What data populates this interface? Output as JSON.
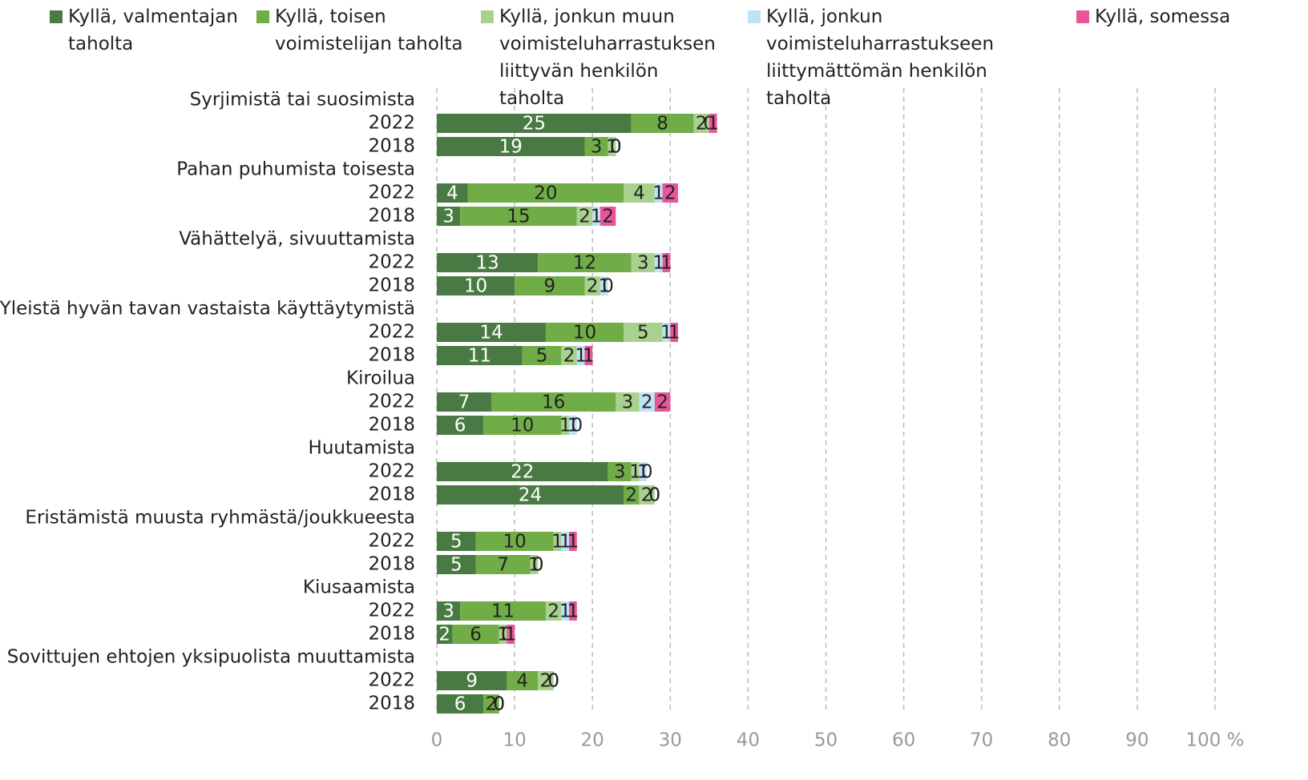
{
  "chart_data": {
    "type": "stacked-bar-horizontal",
    "groups": [
      "Syrjimistä tai suosimista",
      "Pahan puhumista toisesta",
      "Vähättelyä, sivuuttamista",
      "Yleistä hyvän tavan vastaista käyttäytymistä",
      "Kiroilua",
      "Huutamista",
      "Eristämistä muusta ryhmästä/joukkueesta",
      "Kiusaamista",
      "Sovittujen ehtojen yksipuolista muuttamista"
    ],
    "categories": [
      "2022",
      "2018",
      "2022",
      "2018",
      "2022",
      "2018",
      "2022",
      "2018",
      "2022",
      "2018",
      "2022",
      "2018",
      "2022",
      "2018",
      "2022",
      "2018",
      "2022",
      "2018"
    ],
    "series": [
      {
        "name": "Kyllä, valmentajan taholta",
        "color": "#4a7a43",
        "values": [
          25,
          19,
          4,
          3,
          13,
          10,
          14,
          11,
          7,
          6,
          22,
          24,
          5,
          5,
          3,
          2,
          9,
          6
        ]
      },
      {
        "name": "Kyllä, toisen voimistelijan taholta",
        "color": "#70ad47",
        "values": [
          8,
          3,
          20,
          15,
          12,
          9,
          10,
          5,
          16,
          10,
          3,
          2,
          10,
          7,
          11,
          6,
          4,
          2
        ]
      },
      {
        "name": "Kyllä, jonkun muun voimisteluharrastuksen liittyvän henkilön taholta",
        "color": "#a9d18e",
        "values": [
          2,
          1,
          4,
          2,
          3,
          2,
          5,
          2,
          3,
          1,
          1,
          2,
          1,
          1,
          2,
          1,
          2,
          0
        ]
      },
      {
        "name": "Kyllä, jonkun voimisteluharrastukseen liittymättömän henkilön taholta",
        "color": "#bde3f5",
        "values": [
          0,
          0,
          1,
          1,
          1,
          1,
          1,
          1,
          2,
          1,
          1,
          0,
          1,
          0,
          1,
          0,
          0,
          0
        ]
      },
      {
        "name": "Kyllä, somessa",
        "color": "#e8559b",
        "values": [
          1,
          0,
          2,
          2,
          1,
          0,
          1,
          1,
          2,
          0,
          0,
          0,
          1,
          0,
          1,
          1,
          0,
          0
        ]
      }
    ],
    "xlim": [
      0,
      100
    ],
    "xticks": [
      0,
      10,
      20,
      30,
      40,
      50,
      60,
      70,
      80,
      90,
      {
        "value": 100,
        "label": "100 %"
      }
    ],
    "grid": true
  }
}
